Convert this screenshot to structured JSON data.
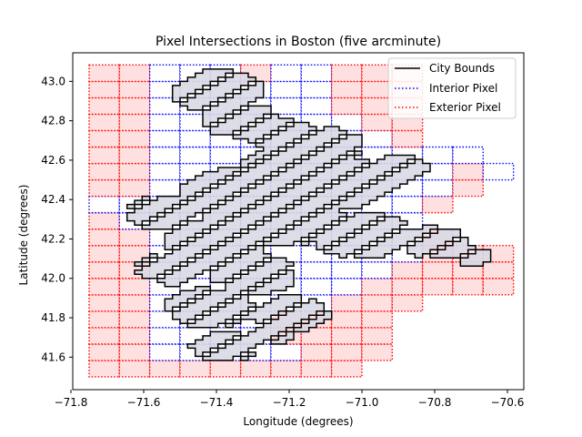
{
  "chart_data": {
    "type": "map",
    "title": "Pixel Intersections in Boston (five arcminute)",
    "xlabel": "Longitude (degrees)",
    "ylabel": "Latitude (degrees)",
    "xlim": [
      -71.795,
      -70.555
    ],
    "ylim": [
      41.435,
      43.145
    ],
    "xticks": [
      -71.8,
      -71.6,
      -71.4,
      -71.2,
      -71.0,
      -70.8,
      -70.6
    ],
    "xtick_labels": [
      "−71.8",
      "−71.6",
      "−71.4",
      "−71.2",
      "−71.0",
      "−70.8",
      "−70.6"
    ],
    "yticks": [
      41.6,
      41.8,
      42.0,
      42.2,
      42.4,
      42.6,
      42.8,
      43.0
    ],
    "ytick_labels": [
      "41.6",
      "41.8",
      "42.0",
      "42.2",
      "42.4",
      "42.6",
      "42.8",
      "43.0"
    ],
    "grid": false,
    "legend_position": "top-right",
    "legend": [
      {
        "label": "City Bounds",
        "color": "#000000",
        "style": "solid"
      },
      {
        "label": "Interior Pixel",
        "color": "#0000ff",
        "style": "dotted"
      },
      {
        "label": "Exterior Pixel",
        "color": "#ff0000",
        "style": "dotted"
      }
    ],
    "colors": {
      "interior_fill": "#d9d9e6",
      "exterior_fill": "#ffe0e0",
      "interior_edge": "#0000ff",
      "exterior_edge": "#ff0000",
      "bounds": "#000000"
    },
    "pixel_size_deg": 0.08333,
    "grid_origin": {
      "lon": -71.75,
      "lat": 41.5
    },
    "pixels": {
      "columns": 14,
      "rows": 19,
      "cells": [
        "EEEEEEEEE.....",
        "EEIIIIIEEE....",
        "EEIIIIEEEE....",
        "EEIIIIEEEE....",
        "EEIIIIIIEEE...",
        "EEIIIIIIIEEEEE",
        "EEIIIIIIIIEEEE",
        "EEIIIIIIIIIEEE",
        "EEIIIIIIIIIE..",
        "EIIIIIIIIII...",
        "IIIIIIIIIIIE..",
        "EEIIIIIIIIIIE.",
        "EEIIIIIIIIIIEI",
        "EEIIIIIIIIIII.",
        "EEIIIIIIIIE...",
        "EEIIIIIIIEE...",
        "EEIIIIIIEEE...",
        "EEIIIIIIEEE...",
        "EEIIIEIIEEE..."
      ]
    }
  }
}
